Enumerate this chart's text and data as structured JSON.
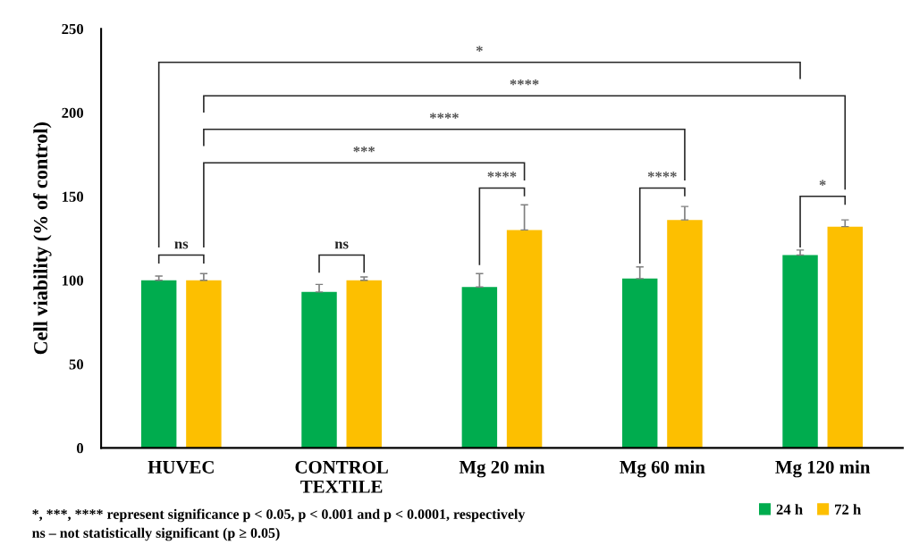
{
  "chart_data": {
    "type": "bar",
    "ylabel": "Cell viability (% of control)",
    "categories": [
      "HUVEC",
      "CONTROL\nTEXTILE",
      "Mg 20 min",
      "Mg 60 min",
      "Mg 120 min"
    ],
    "series": [
      {
        "name": "24 h",
        "color": "#00ac4e",
        "values": [
          100,
          93,
          96,
          101,
          115
        ],
        "errors": [
          2.5,
          4.5,
          8,
          7,
          3
        ]
      },
      {
        "name": "72 h",
        "color": "#fdbf00",
        "values": [
          100,
          100,
          130,
          136,
          132
        ],
        "errors": [
          4,
          2,
          15,
          8,
          4
        ]
      }
    ],
    "ylim": [
      0,
      250
    ],
    "yticks": [
      0,
      50,
      100,
      150,
      200,
      250
    ],
    "grid": false,
    "legend": "bottom right",
    "annotations": [
      "*",
      "****",
      "****",
      "***",
      "****",
      "****",
      "*",
      "ns",
      "ns",
      "*, ***, **** represent significance p < 0.05, p < 0.001 and p < 0.0001, respectively",
      "ns – not statistically significant (p ≥ 0.05)"
    ]
  }
}
